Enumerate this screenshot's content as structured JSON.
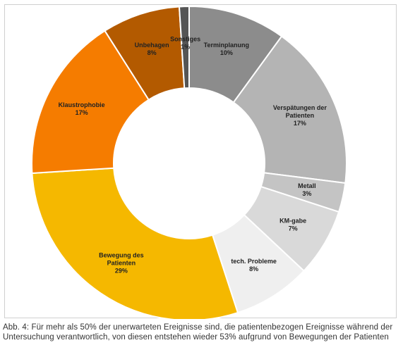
{
  "chart_data": {
    "type": "pie",
    "variant": "donut",
    "title": "",
    "slices": [
      {
        "label": "Terminplanung",
        "value": 10,
        "value_label": "10%",
        "color": "#8c8c8c"
      },
      {
        "label": "Verspätungen der Patienten",
        "value": 17,
        "value_label": "17%",
        "color": "#b4b4b4"
      },
      {
        "label": "Metall",
        "value": 3,
        "value_label": "3%",
        "color": "#c4c4c4"
      },
      {
        "label": "KM-gabe",
        "value": 7,
        "value_label": "7%",
        "color": "#d9d9d9"
      },
      {
        "label": "tech. Probleme",
        "value": 8,
        "value_label": "8%",
        "color": "#efefef"
      },
      {
        "label": "Bewegung des Patienten",
        "value": 29,
        "value_label": "29%",
        "color": "#f5b800"
      },
      {
        "label": "Klaustrophobie",
        "value": 17,
        "value_label": "17%",
        "color": "#f57c00"
      },
      {
        "label": "Unbehagen",
        "value": 8,
        "value_label": "8%",
        "color": "#b35a00"
      },
      {
        "label": "Sonstiges",
        "value": 1,
        "value_label": "1%",
        "color": "#555555"
      }
    ],
    "start": "top",
    "direction": "clockwise",
    "legend": "none"
  },
  "caption": "Abb. 4: Für mehr als 50% der unerwarteten Ereignisse sind, die patientenbezogen Ereignisse während der Untersuchung verantwortlich, von diesen entstehen wieder 53% aufgrund von Bewegungen der Patienten"
}
